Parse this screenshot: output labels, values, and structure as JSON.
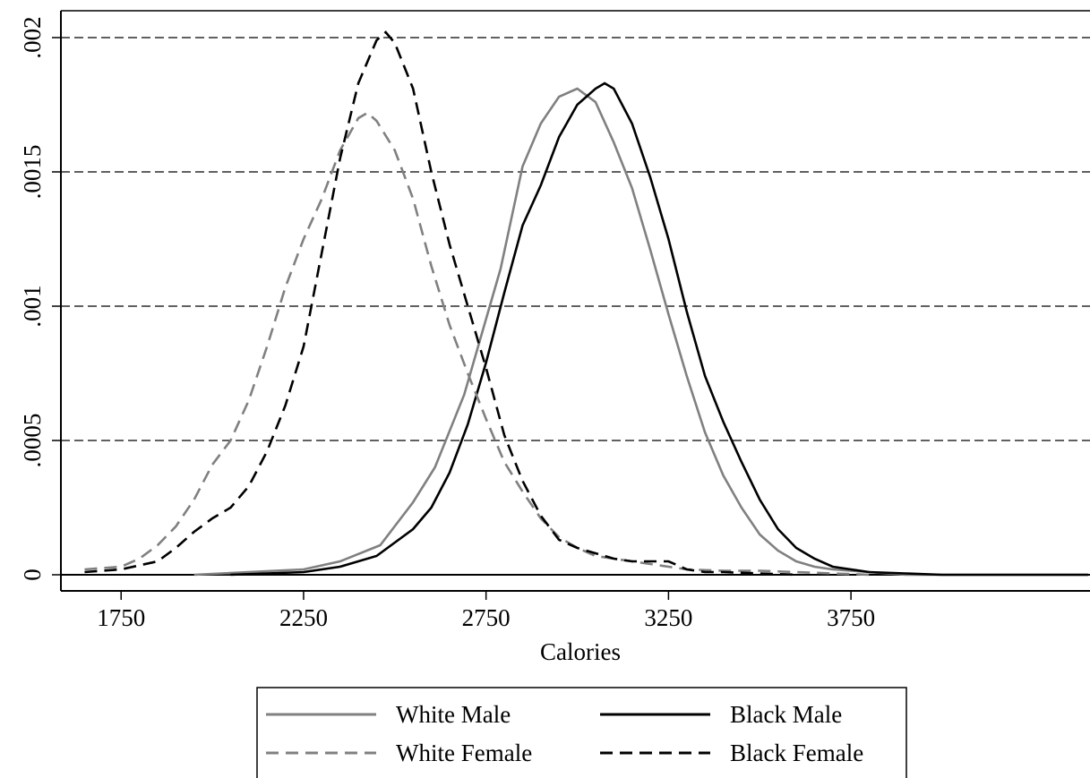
{
  "chart_data": {
    "type": "line",
    "x_label": "Calories",
    "xlim": [
      1585,
      4405
    ],
    "ylim": [
      -6e-05,
      0.0021
    ],
    "xticks": [
      1750,
      2250,
      2750,
      3250,
      3750
    ],
    "yticks": [
      0,
      {
        "value": 0.0005,
        "label": ".0005"
      },
      {
        "value": 0.001,
        "label": ".001"
      },
      {
        "value": 0.0015,
        "label": ".0015"
      },
      {
        "value": 0.002,
        "label": ".002"
      }
    ],
    "grid": true,
    "series": [
      {
        "name": "White Male",
        "color": "#808080",
        "dashed": false,
        "x": [
          1950,
          2250,
          2350,
          2460,
          2550,
          2610,
          2690,
          2790,
          2850,
          2900,
          2950,
          3000,
          3050,
          3100,
          3150,
          3200,
          3250,
          3300,
          3350,
          3400,
          3450,
          3500,
          3550,
          3600,
          3650,
          3700,
          3800,
          3900,
          4400
        ],
        "values": [
          0,
          2e-05,
          5e-05,
          0.00011,
          0.00027,
          0.0004,
          0.00067,
          0.00114,
          0.00152,
          0.00168,
          0.00178,
          0.00181,
          0.00176,
          0.00161,
          0.00144,
          0.00121,
          0.00097,
          0.00074,
          0.00053,
          0.00037,
          0.00025,
          0.00015,
          9e-05,
          5e-05,
          3e-05,
          2e-05,
          1e-05,
          0,
          0
        ]
      },
      {
        "name": "Black Male",
        "color": "#000000",
        "dashed": false,
        "x": [
          2050,
          2250,
          2350,
          2450,
          2550,
          2600,
          2650,
          2700,
          2750,
          2800,
          2850,
          2900,
          2950,
          3000,
          3050,
          3075,
          3100,
          3150,
          3200,
          3250,
          3300,
          3350,
          3400,
          3450,
          3500,
          3550,
          3600,
          3650,
          3700,
          3750,
          3800,
          3900,
          4000,
          4400
        ],
        "values": [
          0,
          1e-05,
          3e-05,
          7e-05,
          0.00017,
          0.00025,
          0.00038,
          0.00056,
          0.00079,
          0.00105,
          0.0013,
          0.00145,
          0.00163,
          0.00175,
          0.00181,
          0.00183,
          0.00181,
          0.00168,
          0.00148,
          0.00125,
          0.00098,
          0.00074,
          0.00057,
          0.00042,
          0.00028,
          0.00017,
          0.0001,
          6e-05,
          3e-05,
          2e-05,
          1e-05,
          5e-06,
          0,
          0
        ]
      },
      {
        "name": "White Female",
        "color": "#808080",
        "dashed": true,
        "x": [
          1650,
          1750,
          1800,
          1850,
          1900,
          1950,
          2000,
          2050,
          2100,
          2150,
          2200,
          2250,
          2300,
          2350,
          2400,
          2425,
          2450,
          2500,
          2550,
          2600,
          2650,
          2700,
          2750,
          2800,
          2850,
          2900,
          2950,
          3000,
          3050,
          3100,
          3150,
          3200,
          3250,
          3300,
          3400,
          3500,
          3600,
          3700,
          3800
        ],
        "values": [
          2e-05,
          3e-05,
          6e-05,
          0.00011,
          0.00018,
          0.00028,
          0.00041,
          0.0005,
          0.00065,
          0.00085,
          0.00107,
          0.00125,
          0.0014,
          0.00158,
          0.0017,
          0.00172,
          0.00169,
          0.00158,
          0.0014,
          0.00115,
          0.00093,
          0.00075,
          0.00058,
          0.00042,
          0.00031,
          0.00021,
          0.00014,
          0.0001,
          7e-05,
          6e-05,
          5e-05,
          4e-05,
          3e-05,
          2e-05,
          1.5e-05,
          1.5e-05,
          1e-05,
          5e-06,
          0
        ]
      },
      {
        "name": "Black Female",
        "color": "#000000",
        "dashed": true,
        "x": [
          1650,
          1750,
          1850,
          1900,
          1950,
          2000,
          2050,
          2100,
          2150,
          2200,
          2250,
          2300,
          2350,
          2400,
          2450,
          2475,
          2500,
          2550,
          2600,
          2650,
          2700,
          2750,
          2800,
          2850,
          2900,
          2950,
          3000,
          3050,
          3100,
          3150,
          3200,
          3250,
          3300,
          3350,
          3400,
          3500,
          3600
        ],
        "values": [
          1e-05,
          2e-05,
          5e-05,
          0.0001,
          0.00016,
          0.00021,
          0.00025,
          0.00033,
          0.00046,
          0.00063,
          0.00085,
          0.0012,
          0.00155,
          0.00183,
          0.00199,
          0.00202,
          0.00198,
          0.00181,
          0.0015,
          0.00123,
          0.001,
          0.00077,
          0.00052,
          0.00035,
          0.00022,
          0.00013,
          0.0001,
          8e-05,
          6e-05,
          5e-05,
          5e-05,
          5e-05,
          2e-05,
          1e-05,
          1e-05,
          5e-06,
          0
        ]
      }
    ]
  }
}
